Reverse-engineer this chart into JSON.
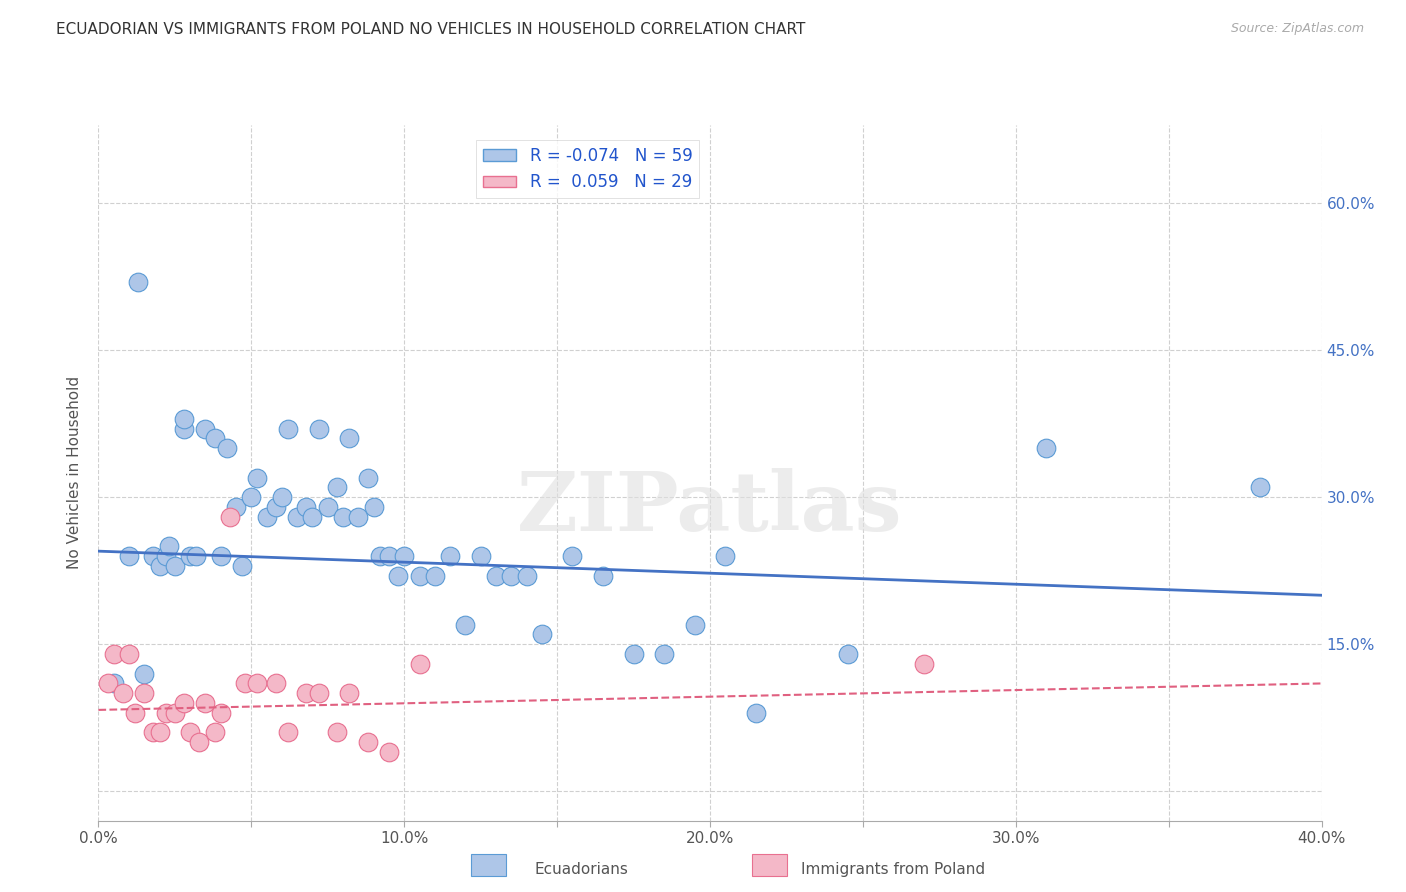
{
  "title": "ECUADORIAN VS IMMIGRANTS FROM POLAND NO VEHICLES IN HOUSEHOLD CORRELATION CHART",
  "source": "Source: ZipAtlas.com",
  "xlabel": "",
  "ylabel": "No Vehicles in Household",
  "xlim": [
    0.0,
    0.4
  ],
  "ylim": [
    -0.03,
    0.68
  ],
  "xticks": [
    0.0,
    0.05,
    0.1,
    0.15,
    0.2,
    0.25,
    0.3,
    0.35,
    0.4
  ],
  "xticklabels": [
    "0.0%",
    "",
    "10.0%",
    "",
    "20.0%",
    "",
    "30.0%",
    "",
    "40.0%"
  ],
  "yticks": [
    0.0,
    0.15,
    0.3,
    0.45,
    0.6
  ],
  "yticklabels": [
    "",
    "15.0%",
    "30.0%",
    "45.0%",
    "60.0%"
  ],
  "blue_R": "-0.074",
  "blue_N": "59",
  "pink_R": "0.059",
  "pink_N": "29",
  "blue_color": "#aec6e8",
  "pink_color": "#f4b8c8",
  "blue_edge": "#5b9bd5",
  "pink_edge": "#e87090",
  "trend_blue": "#4472c4",
  "trend_pink": "#e06080",
  "watermark": "ZIPatlas",
  "blue_scatter_x": [
    0.005,
    0.01,
    0.013,
    0.015,
    0.018,
    0.02,
    0.022,
    0.023,
    0.025,
    0.028,
    0.028,
    0.03,
    0.032,
    0.035,
    0.038,
    0.04,
    0.042,
    0.045,
    0.047,
    0.05,
    0.052,
    0.055,
    0.058,
    0.06,
    0.062,
    0.065,
    0.068,
    0.07,
    0.072,
    0.075,
    0.078,
    0.08,
    0.082,
    0.085,
    0.088,
    0.09,
    0.092,
    0.095,
    0.098,
    0.1,
    0.105,
    0.11,
    0.115,
    0.12,
    0.125,
    0.13,
    0.135,
    0.14,
    0.145,
    0.155,
    0.165,
    0.175,
    0.185,
    0.195,
    0.205,
    0.215,
    0.245,
    0.31,
    0.38
  ],
  "blue_scatter_y": [
    0.11,
    0.24,
    0.52,
    0.12,
    0.24,
    0.23,
    0.24,
    0.25,
    0.23,
    0.37,
    0.38,
    0.24,
    0.24,
    0.37,
    0.36,
    0.24,
    0.35,
    0.29,
    0.23,
    0.3,
    0.32,
    0.28,
    0.29,
    0.3,
    0.37,
    0.28,
    0.29,
    0.28,
    0.37,
    0.29,
    0.31,
    0.28,
    0.36,
    0.28,
    0.32,
    0.29,
    0.24,
    0.24,
    0.22,
    0.24,
    0.22,
    0.22,
    0.24,
    0.17,
    0.24,
    0.22,
    0.22,
    0.22,
    0.16,
    0.24,
    0.22,
    0.14,
    0.14,
    0.17,
    0.24,
    0.08,
    0.14,
    0.35,
    0.31
  ],
  "pink_scatter_x": [
    0.003,
    0.005,
    0.008,
    0.01,
    0.012,
    0.015,
    0.018,
    0.02,
    0.022,
    0.025,
    0.028,
    0.03,
    0.033,
    0.035,
    0.038,
    0.04,
    0.043,
    0.048,
    0.052,
    0.058,
    0.062,
    0.068,
    0.072,
    0.078,
    0.082,
    0.088,
    0.095,
    0.105,
    0.27
  ],
  "pink_scatter_y": [
    0.11,
    0.14,
    0.1,
    0.14,
    0.08,
    0.1,
    0.06,
    0.06,
    0.08,
    0.08,
    0.09,
    0.06,
    0.05,
    0.09,
    0.06,
    0.08,
    0.28,
    0.11,
    0.11,
    0.11,
    0.06,
    0.1,
    0.1,
    0.06,
    0.1,
    0.05,
    0.04,
    0.13,
    0.13
  ],
  "legend_label_blue": "Ecuadorians",
  "legend_label_pink": "Immigrants from Poland",
  "grid_color": "#d0d0d0",
  "background_color": "#ffffff",
  "blue_trend_x0": 0.0,
  "blue_trend_y0": 0.245,
  "blue_trend_x1": 0.4,
  "blue_trend_y1": 0.2,
  "pink_trend_x0": 0.0,
  "pink_trend_y0": 0.083,
  "pink_trend_x1": 0.4,
  "pink_trend_y1": 0.11
}
